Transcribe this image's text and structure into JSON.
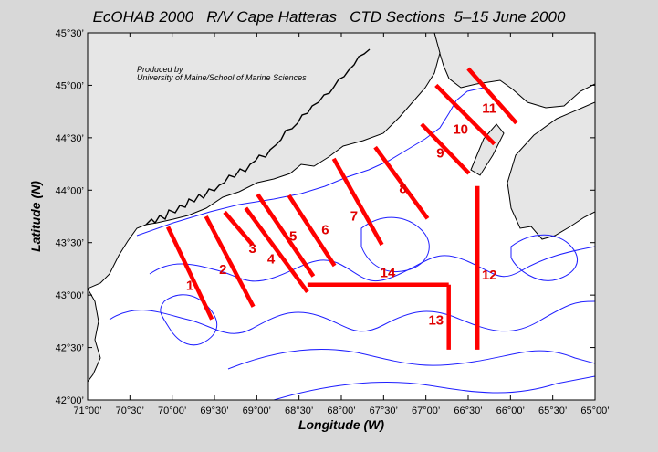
{
  "title": "EcOHAB 2000   R/V Cape Hatteras   CTD Sections  5–15 June 2000",
  "credit": {
    "line1": "Produced by",
    "line2": "University of Maine/School of Marine Sciences"
  },
  "axes": {
    "xlabel": "Longitude (W)",
    "ylabel": "Latitude (N)",
    "xlim": [
      -71.0,
      -65.0
    ],
    "ylim": [
      42.0,
      45.5
    ],
    "xticks": [
      {
        "value": -71.0,
        "label": "71°00’"
      },
      {
        "value": -70.5,
        "label": "70°30’"
      },
      {
        "value": -70.0,
        "label": "70°00’"
      },
      {
        "value": -69.5,
        "label": "69°30’"
      },
      {
        "value": -69.0,
        "label": "69°00’"
      },
      {
        "value": -68.5,
        "label": "68°30’"
      },
      {
        "value": -68.0,
        "label": "68°00’"
      },
      {
        "value": -67.5,
        "label": "67°30’"
      },
      {
        "value": -67.0,
        "label": "67°00’"
      },
      {
        "value": -66.5,
        "label": "66°30’"
      },
      {
        "value": -66.0,
        "label": "66°00’"
      },
      {
        "value": -65.5,
        "label": "65°30’"
      },
      {
        "value": -65.0,
        "label": "65°00’"
      }
    ],
    "yticks": [
      {
        "value": 45.5,
        "label": "45°30’"
      },
      {
        "value": 45.0,
        "label": "45°00’"
      },
      {
        "value": 44.5,
        "label": "44°30’"
      },
      {
        "value": 44.0,
        "label": "44°00’"
      },
      {
        "value": 43.5,
        "label": "43°30’"
      },
      {
        "value": 43.0,
        "label": "43°00’"
      },
      {
        "value": 42.5,
        "label": "42°30’"
      },
      {
        "value": 42.0,
        "label": "42°00’"
      }
    ]
  },
  "colors": {
    "background": "#d8d8d8",
    "sea": "#ffffff",
    "land": "#e6e6e6",
    "coast": "#000000",
    "isobath": "#1f1fff",
    "section": "#ff0000",
    "section_label": "#e00000"
  },
  "sections": [
    {
      "label": "1",
      "points": [
        [
          -70.05,
          43.65
        ],
        [
          -69.53,
          42.77
        ]
      ],
      "label_at": [
        -69.79,
        43.05
      ]
    },
    {
      "label": "2",
      "points": [
        [
          -69.6,
          43.75
        ],
        [
          -69.04,
          42.89
        ]
      ],
      "label_at": [
        -69.4,
        43.2
      ]
    },
    {
      "label": "3",
      "points": [
        [
          -69.38,
          43.79
        ],
        [
          -69.05,
          43.48
        ]
      ],
      "label_at": [
        -69.05,
        43.4
      ]
    },
    {
      "label": "4",
      "points": [
        [
          -69.13,
          43.83
        ],
        [
          -68.4,
          43.03
        ]
      ],
      "label_at": [
        -68.83,
        43.3
      ]
    },
    {
      "label": "5",
      "points": [
        [
          -68.99,
          43.96
        ],
        [
          -68.33,
          43.18
        ]
      ],
      "label_at": [
        -68.57,
        43.52
      ]
    },
    {
      "label": "6",
      "points": [
        [
          -68.62,
          43.95
        ],
        [
          -68.08,
          43.28
        ]
      ],
      "label_at": [
        -68.19,
        43.58
      ]
    },
    {
      "label": "7",
      "points": [
        [
          -68.09,
          44.3
        ],
        [
          -67.52,
          43.48
        ]
      ],
      "label_at": [
        -67.85,
        43.71
      ]
    },
    {
      "label": "8",
      "points": [
        [
          -67.6,
          44.41
        ],
        [
          -66.98,
          43.73
        ]
      ],
      "label_at": [
        -67.27,
        43.97
      ]
    },
    {
      "label": "9",
      "points": [
        [
          -67.05,
          44.63
        ],
        [
          -66.49,
          44.16
        ]
      ],
      "label_at": [
        -66.83,
        44.31
      ]
    },
    {
      "label": "10",
      "points": [
        [
          -66.88,
          45.0
        ],
        [
          -66.19,
          44.44
        ]
      ],
      "label_at": [
        -66.59,
        44.54
      ]
    },
    {
      "label": "11",
      "points": [
        [
          -66.5,
          45.16
        ],
        [
          -65.93,
          44.64
        ]
      ],
      "label_at": [
        -66.25,
        44.74
      ]
    },
    {
      "label": "12",
      "points": [
        [
          -66.39,
          44.04
        ],
        [
          -66.39,
          42.48
        ]
      ],
      "label_at": [
        -66.25,
        43.15
      ]
    },
    {
      "label": "13",
      "points": [
        [
          -66.73,
          43.1
        ],
        [
          -66.73,
          42.48
        ]
      ],
      "label_at": [
        -66.88,
        42.72
      ]
    },
    {
      "label": "14",
      "points": [
        [
          -68.4,
          43.1
        ],
        [
          -66.73,
          43.1
        ]
      ],
      "label_at": [
        -67.45,
        43.17
      ]
    }
  ]
}
